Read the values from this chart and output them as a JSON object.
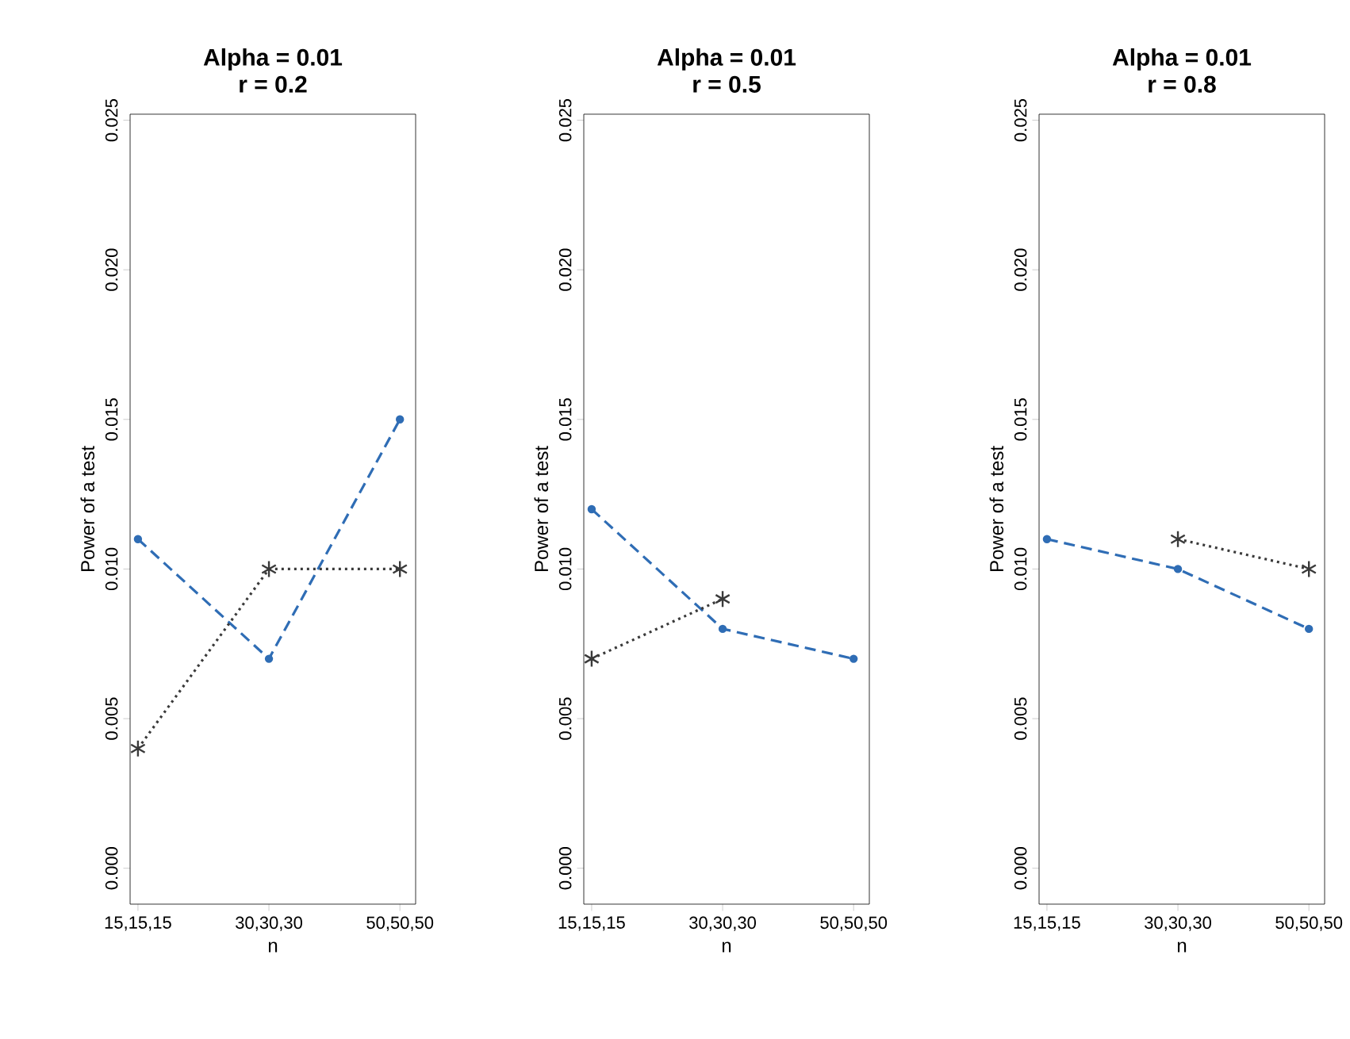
{
  "chart_data": [
    {
      "type": "line",
      "title": "Alpha = 0.01",
      "subtitle": "r = 0.2",
      "xlabel": "n",
      "ylabel": "Power of a test",
      "categories": [
        "15,15,15",
        "30,30,30",
        "50,50,50"
      ],
      "ylim": [
        -0.0012,
        0.0252
      ],
      "yticks": [
        {
          "value": 0,
          "label": "0.000"
        },
        {
          "value": 0.005,
          "label": "0.005"
        },
        {
          "value": 0.01,
          "label": "0.010"
        },
        {
          "value": 0.015,
          "label": "0.015"
        },
        {
          "value": 0.02,
          "label": "0.020"
        },
        {
          "value": 0.025,
          "label": "0.025"
        }
      ],
      "series": [
        {
          "color": "#2f6db5",
          "values": [
            0.011,
            0.007,
            0.015
          ],
          "marker": "circle",
          "line_style": "dashed"
        },
        {
          "color": "#3a3a3a",
          "values": [
            0.004,
            0.01,
            0.01
          ],
          "marker": "cross",
          "line_style": "dotted"
        }
      ]
    },
    {
      "type": "line",
      "title": "Alpha = 0.01",
      "subtitle": "r = 0.5",
      "xlabel": "n",
      "ylabel": "Power of a test",
      "categories": [
        "15,15,15",
        "30,30,30",
        "50,50,50"
      ],
      "ylim": [
        -0.0012,
        0.0252
      ],
      "yticks": [
        {
          "value": 0,
          "label": "0.000"
        },
        {
          "value": 0.005,
          "label": "0.005"
        },
        {
          "value": 0.01,
          "label": "0.010"
        },
        {
          "value": 0.015,
          "label": "0.015"
        },
        {
          "value": 0.02,
          "label": "0.020"
        },
        {
          "value": 0.025,
          "label": "0.025"
        }
      ],
      "series": [
        {
          "color": "#2f6db5",
          "values": [
            0.012,
            0.008,
            0.007
          ],
          "marker": "circle",
          "line_style": "dashed"
        },
        {
          "color": "#3a3a3a",
          "values": [
            0.007,
            0.009,
            null
          ],
          "marker": "cross",
          "line_style": "dotted"
        }
      ]
    },
    {
      "type": "line",
      "title": "Alpha = 0.01",
      "subtitle": "r = 0.8",
      "xlabel": "n",
      "ylabel": "Power of a test",
      "categories": [
        "15,15,15",
        "30,30,30",
        "50,50,50"
      ],
      "ylim": [
        -0.0012,
        0.0252
      ],
      "yticks": [
        {
          "value": 0,
          "label": "0.000"
        },
        {
          "value": 0.005,
          "label": "0.005"
        },
        {
          "value": 0.01,
          "label": "0.010"
        },
        {
          "value": 0.015,
          "label": "0.015"
        },
        {
          "value": 0.02,
          "label": "0.020"
        },
        {
          "value": 0.025,
          "label": "0.025"
        }
      ],
      "series": [
        {
          "color": "#2f6db5",
          "values": [
            0.011,
            0.01,
            0.008
          ],
          "marker": "circle",
          "line_style": "dashed"
        },
        {
          "color": "#3a3a3a",
          "values": [
            null,
            0.011,
            0.01
          ],
          "marker": "cross",
          "line_style": "dotted"
        }
      ]
    }
  ]
}
